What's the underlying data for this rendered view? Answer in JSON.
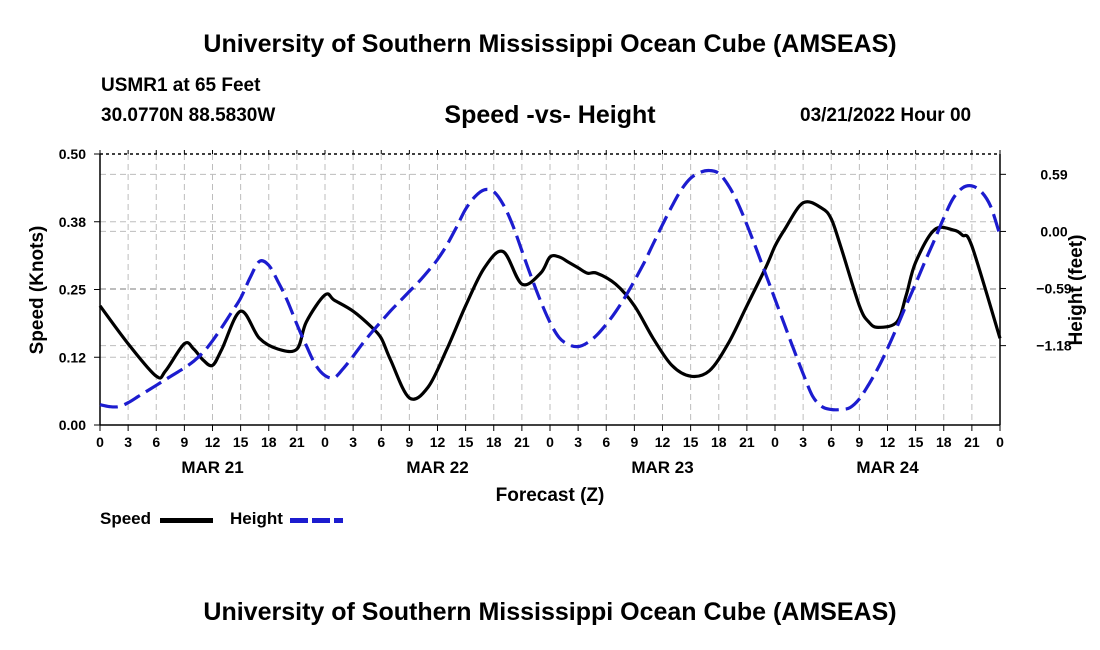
{
  "header": {
    "title": "University of Southern Mississippi Ocean Cube (AMSEAS)",
    "station": "USMR1 at 65 Feet",
    "coordinates": "30.0770N  88.5830W",
    "date": "03/21/2022 Hour 00"
  },
  "footer": {
    "title": "University of Southern Mississippi Ocean Cube (AMSEAS)"
  },
  "chart_data": {
    "type": "line",
    "title": "Speed -vs- Height",
    "xlabel": "Forecast (Z)",
    "ylabel": "Speed (Knots)",
    "y2label": "Height (feet)",
    "xlim": [
      0,
      96
    ],
    "ylim": [
      0,
      0.5
    ],
    "y2lim": [
      -2.0,
      0.8
    ],
    "x_ticks": [
      0,
      3,
      6,
      9,
      12,
      15,
      18,
      21,
      24,
      27,
      30,
      33,
      36,
      39,
      42,
      45,
      48,
      51,
      54,
      57,
      60,
      63,
      66,
      69,
      72,
      75,
      78,
      81,
      84,
      87,
      90,
      93,
      96
    ],
    "x_tick_labels": [
      "0",
      "3",
      "6",
      "9",
      "12",
      "15",
      "18",
      "21",
      "0",
      "3",
      "6",
      "9",
      "12",
      "15",
      "18",
      "21",
      "0",
      "3",
      "6",
      "9",
      "12",
      "15",
      "18",
      "21",
      "0",
      "3",
      "6",
      "9",
      "12",
      "15",
      "18",
      "21",
      "0"
    ],
    "day_labels": [
      {
        "label": "MAR 21",
        "x": 12
      },
      {
        "label": "MAR 22",
        "x": 36
      },
      {
        "label": "MAR 23",
        "x": 60
      },
      {
        "label": "MAR 24",
        "x": 84
      }
    ],
    "y_ticks": [
      0,
      0.125,
      0.25,
      0.375,
      0.5
    ],
    "y_tick_labels": [
      "0.00",
      "0.12",
      "0.25",
      "0.38",
      "0.50"
    ],
    "y2_ticks": [
      -1.18,
      -0.59,
      0.0,
      0.59
    ],
    "y2_tick_labels": [
      "−1.18",
      "−0.59",
      "0.00",
      "0.59"
    ],
    "grid": true,
    "legend": "bottom-left",
    "series": [
      {
        "name": "Speed",
        "axis": "left",
        "color": "#000000",
        "dash": "solid",
        "x": [
          0,
          3,
          6,
          7,
          9,
          10,
          11,
          12,
          13,
          15,
          17,
          19,
          21,
          22,
          24,
          25,
          27,
          29,
          30,
          31,
          33,
          35,
          37,
          39,
          41,
          43,
          45,
          47,
          48,
          49,
          50,
          51,
          52,
          53,
          55,
          57,
          59,
          61,
          63,
          65,
          67,
          69,
          71,
          72,
          73,
          75,
          77,
          78,
          79,
          81,
          82,
          83,
          85,
          86,
          87,
          89,
          91,
          92,
          93,
          96
        ],
        "values": [
          0.22,
          0.15,
          0.09,
          0.1,
          0.15,
          0.14,
          0.12,
          0.11,
          0.14,
          0.21,
          0.16,
          0.14,
          0.14,
          0.19,
          0.24,
          0.23,
          0.21,
          0.18,
          0.16,
          0.12,
          0.05,
          0.07,
          0.14,
          0.22,
          0.29,
          0.32,
          0.26,
          0.28,
          0.31,
          0.31,
          0.3,
          0.29,
          0.28,
          0.28,
          0.26,
          0.22,
          0.16,
          0.11,
          0.09,
          0.1,
          0.15,
          0.22,
          0.29,
          0.33,
          0.36,
          0.41,
          0.4,
          0.38,
          0.33,
          0.22,
          0.19,
          0.18,
          0.19,
          0.24,
          0.3,
          0.36,
          0.36,
          0.35,
          0.33,
          0.16
        ]
      },
      {
        "name": "Height",
        "axis": "right",
        "color": "#1c1ccf",
        "dash": "dashed",
        "x": [
          0,
          1,
          2,
          3,
          4,
          5,
          6,
          7,
          8,
          9,
          10,
          11,
          12,
          13,
          14,
          15,
          16,
          17,
          18,
          19,
          20,
          21,
          22,
          23,
          24,
          25,
          26,
          27,
          28,
          29,
          30,
          31,
          32,
          33,
          34,
          35,
          36,
          37,
          38,
          39,
          40,
          41,
          42,
          43,
          44,
          45,
          46,
          47,
          48,
          49,
          50,
          51,
          52,
          53,
          54,
          55,
          56,
          57,
          58,
          59,
          60,
          61,
          62,
          63,
          64,
          65,
          66,
          67,
          68,
          69,
          70,
          71,
          72,
          73,
          74,
          75,
          76,
          77,
          78,
          79,
          80,
          81,
          82,
          83,
          84,
          85,
          86,
          87,
          88,
          89,
          90,
          91,
          92,
          93,
          94,
          95,
          96
        ],
        "values": [
          -1.79,
          -1.81,
          -1.81,
          -1.77,
          -1.71,
          -1.65,
          -1.59,
          -1.53,
          -1.47,
          -1.41,
          -1.34,
          -1.25,
          -1.13,
          -0.99,
          -0.84,
          -0.69,
          -0.48,
          -0.31,
          -0.35,
          -0.52,
          -0.72,
          -0.96,
          -1.18,
          -1.38,
          -1.49,
          -1.51,
          -1.41,
          -1.29,
          -1.16,
          -1.04,
          -0.93,
          -0.82,
          -0.72,
          -0.62,
          -0.52,
          -0.41,
          -0.29,
          -0.14,
          0.04,
          0.23,
          0.36,
          0.43,
          0.41,
          0.28,
          0.07,
          -0.2,
          -0.47,
          -0.72,
          -0.94,
          -1.1,
          -1.17,
          -1.19,
          -1.15,
          -1.07,
          -0.96,
          -0.83,
          -0.68,
          -0.51,
          -0.33,
          -0.13,
          0.07,
          0.26,
          0.43,
          0.55,
          0.61,
          0.63,
          0.6,
          0.48,
          0.3,
          0.07,
          -0.18,
          -0.44,
          -0.7,
          -0.96,
          -1.22,
          -1.47,
          -1.7,
          -1.81,
          -1.84,
          -1.84,
          -1.82,
          -1.73,
          -1.58,
          -1.41,
          -1.21,
          -0.99,
          -0.76,
          -0.54,
          -0.31,
          -0.09,
          0.14,
          0.34,
          0.45,
          0.47,
          0.41,
          0.26,
          -0.04
        ]
      }
    ]
  }
}
